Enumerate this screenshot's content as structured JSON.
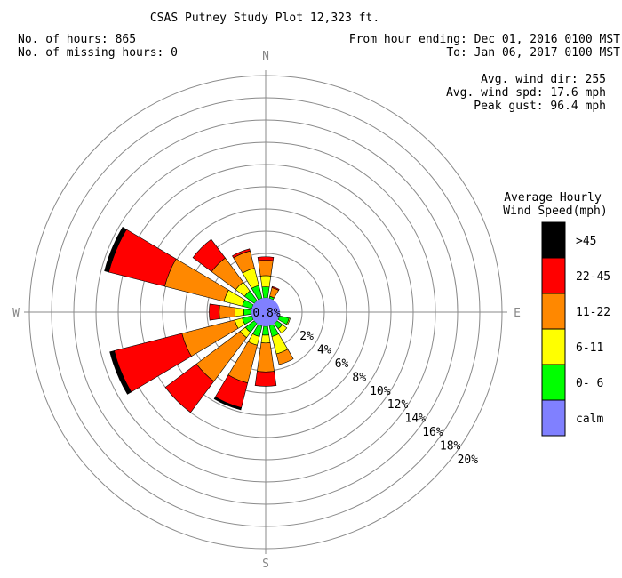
{
  "title": "CSAS Putney Study Plot 12,323 ft.",
  "info": {
    "hours": "No. of hours: 865",
    "missing": "No. of missing hours: 0",
    "from": "From hour ending: Dec 01, 2016 0100 MST",
    "to": "To: Jan 06, 2017 0100 MST",
    "avg_dir": "Avg. wind dir: 255",
    "avg_spd": "Avg. wind spd: 17.6 mph",
    "peak": "Peak gust: 96.4 mph"
  },
  "cardinals": {
    "n": "N",
    "e": "E",
    "s": "S",
    "w": "W"
  },
  "legend": {
    "title1": "Average Hourly",
    "title2": "Wind Speed(mph)",
    "items": [
      {
        "label": ">45",
        "color": "#000000"
      },
      {
        "label": "22-45",
        "color": "#ff0000"
      },
      {
        "label": "11-22",
        "color": "#ff8800"
      },
      {
        "label": "6-11",
        "color": "#ffff00"
      },
      {
        "label": "0- 6",
        "color": "#00ff00"
      },
      {
        "label": "calm",
        "color": "#8080ff"
      }
    ]
  },
  "chart_data": {
    "type": "wind-rose",
    "calm_percent": 0.8,
    "calm_label": "0.8%",
    "rings": [
      2,
      4,
      6,
      8,
      10,
      12,
      14,
      16,
      18,
      20
    ],
    "ring_labels": [
      "2%",
      "4%",
      "6%",
      "8%",
      "10%",
      "12%",
      "14%",
      "16%",
      "18%",
      "20%"
    ],
    "speed_bins": [
      "0- 6",
      "6-11",
      "11-22",
      "22-45",
      ">45"
    ],
    "directions": [
      {
        "dir": "N",
        "deg": 0,
        "cum": [
          1.0,
          2.0,
          3.4,
          3.7,
          3.7
        ]
      },
      {
        "dir": "NNE",
        "deg": 22.5,
        "cum": [
          0.2,
          0.2,
          1.0,
          1.1,
          1.1
        ]
      },
      {
        "dir": "NE",
        "deg": 45,
        "cum": [
          0,
          0,
          0,
          0,
          0
        ]
      },
      {
        "dir": "ENE",
        "deg": 67.5,
        "cum": [
          0,
          0,
          0,
          0,
          0
        ]
      },
      {
        "dir": "E",
        "deg": 90,
        "cum": [
          0,
          0,
          0,
          0,
          0
        ]
      },
      {
        "dir": "ESE",
        "deg": 112.5,
        "cum": [
          0.9,
          1.0,
          1.0,
          1.0,
          1.0
        ]
      },
      {
        "dir": "SE",
        "deg": 135,
        "cum": [
          0.6,
          1.1,
          1.1,
          1.1,
          1.1
        ]
      },
      {
        "dir": "SSE",
        "deg": 157.5,
        "cum": [
          1.0,
          2.6,
          3.6,
          3.6,
          3.6
        ]
      },
      {
        "dir": "S",
        "deg": 180,
        "cum": [
          0.8,
          1.5,
          4.1,
          5.4,
          5.4
        ]
      },
      {
        "dir": "SSW",
        "deg": 202.5,
        "cum": [
          1.0,
          1.8,
          5.3,
          7.6,
          7.8
        ]
      },
      {
        "dir": "SW",
        "deg": 225,
        "cum": [
          1.0,
          1.6,
          6.5,
          10.0,
          10.0
        ]
      },
      {
        "dir": "WSW",
        "deg": 247.5,
        "cum": [
          0.9,
          1.6,
          6.5,
          12.8,
          13.2
        ]
      },
      {
        "dir": "W",
        "deg": 270,
        "cum": [
          0.7,
          1.5,
          2.9,
          3.8,
          3.8
        ]
      },
      {
        "dir": "WNW",
        "deg": 292.5,
        "cum": [
          0.9,
          2.6,
          8.1,
          13.3,
          13.7
        ]
      },
      {
        "dir": "NW",
        "deg": 315,
        "cum": [
          1.1,
          2.1,
          4.8,
          6.9,
          6.9
        ]
      },
      {
        "dir": "NNW",
        "deg": 337.5,
        "cum": [
          1.2,
          2.8,
          4.4,
          4.6,
          4.6
        ]
      }
    ],
    "colors": [
      "#00ff00",
      "#ffff00",
      "#ff8800",
      "#ff0000",
      "#000000"
    ],
    "calm_color": "#8080ff"
  }
}
